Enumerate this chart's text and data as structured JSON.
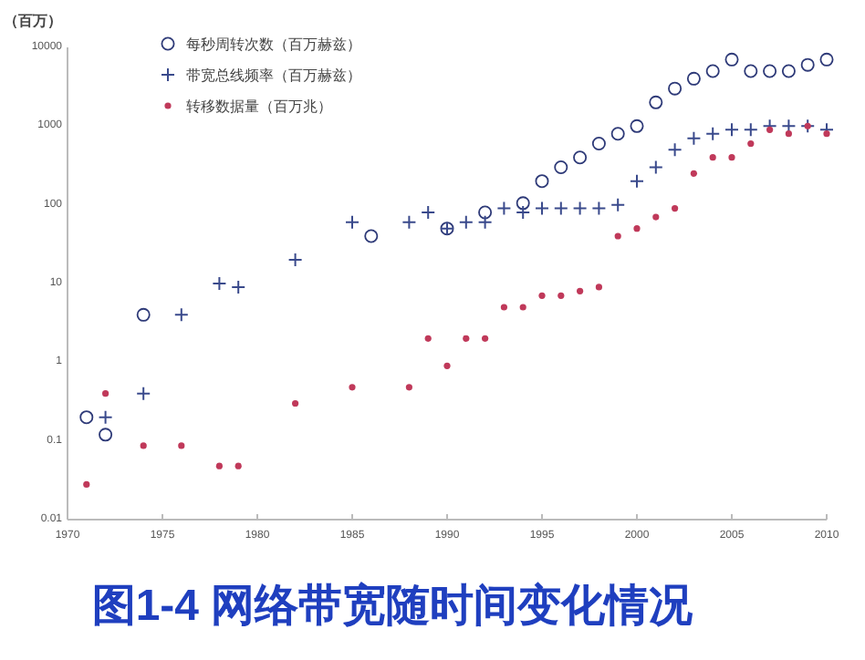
{
  "chart_data": {
    "type": "scatter",
    "title": "图1-4 网络带宽随时间变化情况",
    "ylabel": "（百万）",
    "log": "y",
    "legend": "top left",
    "xlim": [
      1970,
      2010
    ],
    "xticks": [
      1970,
      1975,
      1980,
      1985,
      1990,
      1995,
      2000,
      2005,
      2010
    ],
    "ylim": [
      0.01,
      10000
    ],
    "yticks": [
      10000,
      1000,
      100,
      10,
      1,
      0.1,
      0.01
    ],
    "series": [
      {
        "name": "每秒周转次数（百万赫兹）",
        "marker": "circle",
        "color": "#2e3a78",
        "x": [
          1971,
          1972,
          1974,
          1986,
          1990,
          1992,
          1994,
          1995,
          1996,
          1997,
          1998,
          1999,
          2000,
          2001,
          2002,
          2003,
          2004,
          2005,
          2006,
          2007,
          2008,
          2009,
          2010
        ],
        "values": [
          0.2,
          0.12,
          4,
          40,
          50,
          80,
          105,
          200,
          300,
          400,
          600,
          800,
          1000,
          2000,
          3000,
          4000,
          5000,
          7000,
          5000,
          5000,
          5000,
          6000,
          7000
        ]
      },
      {
        "name": "带宽总线频率（百万赫兹）",
        "marker": "cross",
        "color": "#3a4a8c",
        "x": [
          1972,
          1974,
          1976,
          1978,
          1979,
          1982,
          1985,
          1988,
          1989,
          1990,
          1991,
          1992,
          1993,
          1994,
          1995,
          1996,
          1997,
          1998,
          1999,
          2000,
          2001,
          2002,
          2003,
          2004,
          2005,
          2006,
          2007,
          2008,
          2009,
          2010
        ],
        "values": [
          0.2,
          0.4,
          4,
          10,
          9,
          20,
          60,
          60,
          80,
          50,
          60,
          60,
          90,
          80,
          90,
          90,
          90,
          90,
          100,
          200,
          300,
          500,
          700,
          800,
          900,
          900,
          1000,
          1000,
          1000,
          900
        ]
      },
      {
        "name": "转移数据量（百万兆）",
        "color": "#c0395a",
        "x": [
          1971,
          1972,
          1974,
          1976,
          1978,
          1979,
          1982,
          1985,
          1988,
          1989,
          1990,
          1991,
          1992,
          1993,
          1994,
          1995,
          1996,
          1997,
          1998,
          1999,
          2000,
          2001,
          2002,
          2003,
          2004,
          2005,
          2006,
          2007,
          2008,
          2009,
          2010
        ],
        "values": [
          0.028,
          0.4,
          0.087,
          0.087,
          0.048,
          0.048,
          0.3,
          0.48,
          0.48,
          2,
          0.9,
          2,
          2,
          5,
          5,
          7,
          7,
          8,
          9,
          40,
          50,
          70,
          90,
          250,
          400,
          400,
          600,
          900,
          800,
          1000,
          800
        ]
      }
    ]
  }
}
